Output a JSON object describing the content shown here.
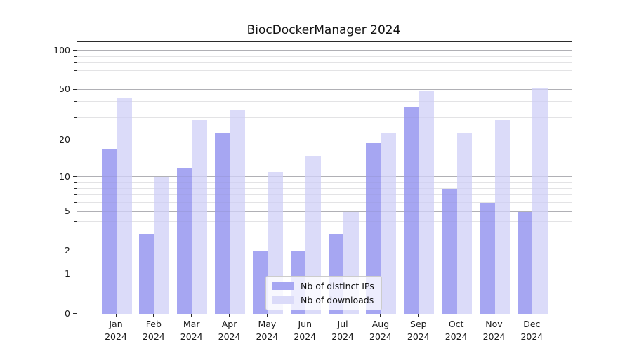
{
  "chart_data": {
    "type": "bar",
    "title": "BiocDockerManager 2024",
    "year_label": "2024",
    "categories": [
      "Jan",
      "Feb",
      "Mar",
      "Apr",
      "May",
      "Jun",
      "Jul",
      "Aug",
      "Sep",
      "Oct",
      "Nov",
      "Dec"
    ],
    "series": [
      {
        "name": "Nb of distinct IPs",
        "color": "#a6a6f2",
        "values": [
          17,
          3,
          12,
          23,
          2,
          2,
          3,
          19,
          37,
          8,
          6,
          5
        ]
      },
      {
        "name": "Nb of downloads",
        "color": "#dbdbf9",
        "values": [
          43,
          10,
          29,
          35,
          11,
          15,
          5,
          23,
          49,
          23,
          29,
          52
        ]
      }
    ],
    "yscale": "log1p",
    "ylim": [
      0,
      116
    ],
    "yticks_major": [
      0,
      1,
      2,
      5,
      10,
      20,
      50,
      100
    ],
    "yticks_minor": [
      3,
      4,
      6,
      7,
      8,
      9,
      30,
      40,
      60,
      70,
      80,
      90
    ],
    "grid": true,
    "legend_position": "lower center",
    "colors": {
      "grid_major": "#bdbdbd",
      "grid_minor": "#ececec",
      "spine": "#2b2b2b",
      "text": "#1a1a1a",
      "legend_border": "#cccccc",
      "background": "#ffffff"
    }
  }
}
